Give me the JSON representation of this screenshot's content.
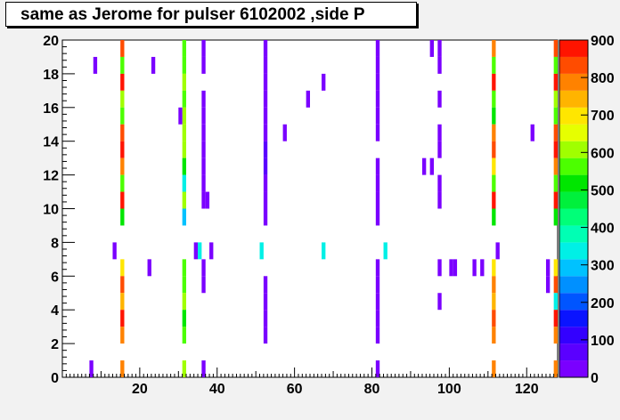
{
  "title": "same as Jerome for pulser 6102002 ,side P",
  "chart_data": {
    "type": "heatmap",
    "title": "same as Jerome for pulser 6102002 ,side P",
    "xlabel": "",
    "ylabel": "",
    "xlim": [
      0,
      128
    ],
    "ylim": [
      0,
      20
    ],
    "x_ticks": [
      "20",
      "40",
      "60",
      "80",
      "100",
      "120"
    ],
    "y_ticks": [
      "0",
      "2",
      "4",
      "6",
      "8",
      "10",
      "12",
      "14",
      "16",
      "18",
      "20"
    ],
    "colorbar": {
      "range": [
        0,
        900
      ],
      "ticks": [
        "0",
        "100",
        "200",
        "300",
        "400",
        "500",
        "600",
        "700",
        "800",
        "900"
      ],
      "palette": [
        "#7a00ff",
        "#5a00ff",
        "#3300ff",
        "#0a14ff",
        "#0055ff",
        "#0090ff",
        "#00c2ff",
        "#00f0e6",
        "#00ffb4",
        "#00ff78",
        "#00f03c",
        "#00e600",
        "#4cff00",
        "#a0ff00",
        "#e6ff00",
        "#ffe600",
        "#ffb400",
        "#ff8200",
        "#ff4c00",
        "#ff1400"
      ]
    },
    "cells": [
      {
        "x": 15,
        "y": 19,
        "v": 820
      },
      {
        "x": 15,
        "y": 18,
        "v": 580
      },
      {
        "x": 15,
        "y": 17,
        "v": 880
      },
      {
        "x": 15,
        "y": 16,
        "v": 620
      },
      {
        "x": 15,
        "y": 15,
        "v": 540
      },
      {
        "x": 15,
        "y": 14,
        "v": 830
      },
      {
        "x": 15,
        "y": 13,
        "v": 880
      },
      {
        "x": 15,
        "y": 12,
        "v": 770
      },
      {
        "x": 15,
        "y": 11,
        "v": 540
      },
      {
        "x": 15,
        "y": 10,
        "v": 880
      },
      {
        "x": 15,
        "y": 9,
        "v": 520
      },
      {
        "x": 15,
        "y": 6,
        "v": 690
      },
      {
        "x": 15,
        "y": 5,
        "v": 820
      },
      {
        "x": 15,
        "y": 4,
        "v": 720
      },
      {
        "x": 15,
        "y": 3,
        "v": 880
      },
      {
        "x": 15,
        "y": 2,
        "v": 800
      },
      {
        "x": 15,
        "y": 0,
        "v": 790
      },
      {
        "x": 31,
        "y": 19,
        "v": 560
      },
      {
        "x": 31,
        "y": 18,
        "v": 580
      },
      {
        "x": 31,
        "y": 17,
        "v": 620
      },
      {
        "x": 31,
        "y": 16,
        "v": 560
      },
      {
        "x": 31,
        "y": 15,
        "v": 600
      },
      {
        "x": 31,
        "y": 14,
        "v": 620
      },
      {
        "x": 31,
        "y": 13,
        "v": 620
      },
      {
        "x": 31,
        "y": 12,
        "v": 520
      },
      {
        "x": 31,
        "y": 11,
        "v": 340
      },
      {
        "x": 31,
        "y": 10,
        "v": 600
      },
      {
        "x": 31,
        "y": 9,
        "v": 300
      },
      {
        "x": 31,
        "y": 6,
        "v": 580
      },
      {
        "x": 31,
        "y": 5,
        "v": 560
      },
      {
        "x": 31,
        "y": 4,
        "v": 620
      },
      {
        "x": 31,
        "y": 3,
        "v": 500
      },
      {
        "x": 31,
        "y": 2,
        "v": 540
      },
      {
        "x": 31,
        "y": 0,
        "v": 600
      },
      {
        "x": 111,
        "y": 19,
        "v": 780
      },
      {
        "x": 111,
        "y": 18,
        "v": 540
      },
      {
        "x": 111,
        "y": 17,
        "v": 880
      },
      {
        "x": 111,
        "y": 16,
        "v": 560
      },
      {
        "x": 111,
        "y": 15,
        "v": 500
      },
      {
        "x": 111,
        "y": 14,
        "v": 790
      },
      {
        "x": 111,
        "y": 13,
        "v": 830
      },
      {
        "x": 111,
        "y": 12,
        "v": 690
      },
      {
        "x": 111,
        "y": 11,
        "v": 540
      },
      {
        "x": 111,
        "y": 10,
        "v": 880
      },
      {
        "x": 111,
        "y": 9,
        "v": 520
      },
      {
        "x": 111,
        "y": 6,
        "v": 690
      },
      {
        "x": 111,
        "y": 5,
        "v": 780
      },
      {
        "x": 111,
        "y": 4,
        "v": 720
      },
      {
        "x": 111,
        "y": 3,
        "v": 830
      },
      {
        "x": 111,
        "y": 2,
        "v": 800
      },
      {
        "x": 111,
        "y": 0,
        "v": 780
      },
      {
        "x": 127,
        "y": 19,
        "v": 810
      },
      {
        "x": 127,
        "y": 18,
        "v": 580
      },
      {
        "x": 127,
        "y": 17,
        "v": 880
      },
      {
        "x": 127,
        "y": 16,
        "v": 620
      },
      {
        "x": 127,
        "y": 15,
        "v": 540
      },
      {
        "x": 127,
        "y": 14,
        "v": 820
      },
      {
        "x": 127,
        "y": 13,
        "v": 880
      },
      {
        "x": 127,
        "y": 12,
        "v": 770
      },
      {
        "x": 127,
        "y": 11,
        "v": 540
      },
      {
        "x": 127,
        "y": 10,
        "v": 880
      },
      {
        "x": 127,
        "y": 9,
        "v": 520
      },
      {
        "x": 127,
        "y": 6,
        "v": 690
      },
      {
        "x": 127,
        "y": 5,
        "v": 820
      },
      {
        "x": 127,
        "y": 4,
        "v": 320
      },
      {
        "x": 127,
        "y": 3,
        "v": 880
      },
      {
        "x": 127,
        "y": 2,
        "v": 800
      },
      {
        "x": 127,
        "y": 0,
        "v": 790
      },
      {
        "x": 36,
        "y": 19,
        "v": 10
      },
      {
        "x": 36,
        "y": 18,
        "v": 10
      },
      {
        "x": 36,
        "y": 16,
        "v": 10
      },
      {
        "x": 36,
        "y": 15,
        "v": 10
      },
      {
        "x": 36,
        "y": 14,
        "v": 10
      },
      {
        "x": 36,
        "y": 13,
        "v": 10
      },
      {
        "x": 36,
        "y": 12,
        "v": 10
      },
      {
        "x": 36,
        "y": 11,
        "v": 10
      },
      {
        "x": 36,
        "y": 10,
        "v": 10
      },
      {
        "x": 36,
        "y": 6,
        "v": 10
      },
      {
        "x": 36,
        "y": 5,
        "v": 10
      },
      {
        "x": 36,
        "y": 0,
        "v": 10
      },
      {
        "x": 37,
        "y": 10,
        "v": 10
      },
      {
        "x": 52,
        "y": 19,
        "v": 10
      },
      {
        "x": 52,
        "y": 18,
        "v": 10
      },
      {
        "x": 52,
        "y": 17,
        "v": 10
      },
      {
        "x": 52,
        "y": 16,
        "v": 10
      },
      {
        "x": 52,
        "y": 15,
        "v": 10
      },
      {
        "x": 52,
        "y": 14,
        "v": 10
      },
      {
        "x": 52,
        "y": 13,
        "v": 80
      },
      {
        "x": 52,
        "y": 12,
        "v": 80
      },
      {
        "x": 52,
        "y": 11,
        "v": 10
      },
      {
        "x": 52,
        "y": 10,
        "v": 10
      },
      {
        "x": 52,
        "y": 9,
        "v": 10
      },
      {
        "x": 52,
        "y": 5,
        "v": 10
      },
      {
        "x": 52,
        "y": 4,
        "v": 10
      },
      {
        "x": 52,
        "y": 3,
        "v": 10
      },
      {
        "x": 52,
        "y": 2,
        "v": 10
      },
      {
        "x": 81,
        "y": 19,
        "v": 10
      },
      {
        "x": 81,
        "y": 18,
        "v": 10
      },
      {
        "x": 81,
        "y": 17,
        "v": 10
      },
      {
        "x": 81,
        "y": 16,
        "v": 10
      },
      {
        "x": 81,
        "y": 15,
        "v": 10
      },
      {
        "x": 81,
        "y": 14,
        "v": 10
      },
      {
        "x": 81,
        "y": 12,
        "v": 10
      },
      {
        "x": 81,
        "y": 11,
        "v": 10
      },
      {
        "x": 81,
        "y": 10,
        "v": 10
      },
      {
        "x": 81,
        "y": 9,
        "v": 10
      },
      {
        "x": 81,
        "y": 6,
        "v": 10
      },
      {
        "x": 81,
        "y": 5,
        "v": 10
      },
      {
        "x": 81,
        "y": 4,
        "v": 10
      },
      {
        "x": 81,
        "y": 3,
        "v": 10
      },
      {
        "x": 81,
        "y": 2,
        "v": 10
      },
      {
        "x": 81,
        "y": 0,
        "v": 10
      },
      {
        "x": 97,
        "y": 19,
        "v": 10
      },
      {
        "x": 97,
        "y": 18,
        "v": 10
      },
      {
        "x": 97,
        "y": 16,
        "v": 10
      },
      {
        "x": 97,
        "y": 14,
        "v": 10
      },
      {
        "x": 97,
        "y": 13,
        "v": 10
      },
      {
        "x": 97,
        "y": 11,
        "v": 10
      },
      {
        "x": 97,
        "y": 10,
        "v": 10
      },
      {
        "x": 97,
        "y": 6,
        "v": 10
      },
      {
        "x": 97,
        "y": 4,
        "v": 10
      },
      {
        "x": 7,
        "y": 0,
        "v": 10
      },
      {
        "x": 8,
        "y": 18,
        "v": 10
      },
      {
        "x": 23,
        "y": 18,
        "v": 10
      },
      {
        "x": 30,
        "y": 15,
        "v": 10
      },
      {
        "x": 63,
        "y": 16,
        "v": 10
      },
      {
        "x": 67,
        "y": 17,
        "v": 10
      },
      {
        "x": 57,
        "y": 14,
        "v": 10
      },
      {
        "x": 93,
        "y": 12,
        "v": 10
      },
      {
        "x": 95,
        "y": 12,
        "v": 10
      },
      {
        "x": 95,
        "y": 19,
        "v": 10
      },
      {
        "x": 121,
        "y": 14,
        "v": 10
      },
      {
        "x": 13,
        "y": 7,
        "v": 10
      },
      {
        "x": 34,
        "y": 7,
        "v": 10
      },
      {
        "x": 35,
        "y": 7,
        "v": 330
      },
      {
        "x": 38,
        "y": 7,
        "v": 10
      },
      {
        "x": 51,
        "y": 7,
        "v": 330
      },
      {
        "x": 67,
        "y": 7,
        "v": 330
      },
      {
        "x": 83,
        "y": 7,
        "v": 330
      },
      {
        "x": 112,
        "y": 7,
        "v": 10
      },
      {
        "x": 22,
        "y": 6,
        "v": 10
      },
      {
        "x": 100,
        "y": 6,
        "v": 10
      },
      {
        "x": 101,
        "y": 6,
        "v": 10
      },
      {
        "x": 106,
        "y": 6,
        "v": 10
      },
      {
        "x": 108,
        "y": 6,
        "v": 10
      },
      {
        "x": 125,
        "y": 6,
        "v": 10
      },
      {
        "x": 125,
        "y": 5,
        "v": 10
      }
    ]
  }
}
